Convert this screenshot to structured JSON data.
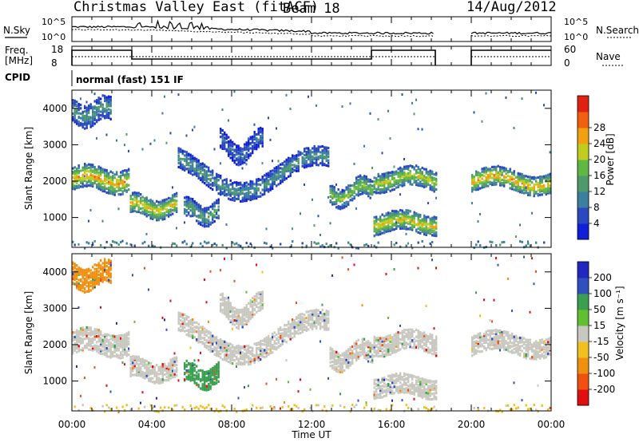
{
  "header": {
    "title": "Christmas Valley East (fitACF)",
    "beam": "Beam 18",
    "date": "14/Aug/2012"
  },
  "noise_panel": {
    "left_label": "N.Sky",
    "right_label": "N.Search",
    "yticks": [
      "10^5",
      "10^0"
    ]
  },
  "freq_panel": {
    "left_label_1": "Freq.",
    "left_label_2": "[MHz]",
    "right_label": "Nave",
    "left_ticks": [
      "18",
      "8"
    ],
    "right_ticks": [
      "60",
      "0"
    ],
    "cpid_label": "CPID",
    "cpid_text": "normal (fast) 151 IF"
  },
  "chart_data": [
    {
      "type": "heatmap",
      "name": "power",
      "ylabel": "Slant Range [km]",
      "yticks": [
        1000,
        2000,
        3000,
        4000
      ],
      "ylim": [
        180,
        4500
      ],
      "xlim_hours": [
        0,
        24
      ],
      "colorbar_label": "Power [dB]",
      "colorbar_ticks": [
        "4",
        "8",
        "12",
        "16",
        "20",
        "24",
        "28"
      ],
      "colorbar_colors": [
        "#1020d8",
        "#2a48c0",
        "#3d7f9e",
        "#4f9a6a",
        "#60b844",
        "#c0cc20",
        "#f0a010",
        "#f06010",
        "#e02010"
      ],
      "gaps_hours": [
        [
          18.2,
          20.0
        ]
      ],
      "bands": [
        {
          "t0": 0.0,
          "t1": 2.9,
          "r": 2050,
          "amp": 120,
          "w": 300,
          "v": 24
        },
        {
          "t0": 2.9,
          "t1": 5.2,
          "r": 1300,
          "amp": 120,
          "w": 280,
          "v": 22
        },
        {
          "t0": 5.2,
          "t1": 12.8,
          "r": 2200,
          "amp": 500,
          "w": 260,
          "v": 12
        },
        {
          "t0": 12.8,
          "t1": 15.0,
          "r": 1700,
          "amp": 200,
          "w": 280,
          "v": 18
        },
        {
          "t0": 15.0,
          "t1": 18.2,
          "r": 2050,
          "amp": 120,
          "w": 260,
          "v": 20
        },
        {
          "t0": 15.0,
          "t1": 18.2,
          "r": 850,
          "amp": 100,
          "w": 260,
          "v": 22
        },
        {
          "t0": 20.0,
          "t1": 24.0,
          "r": 2000,
          "amp": 150,
          "w": 280,
          "v": 24
        },
        {
          "t0": 5.5,
          "t1": 7.3,
          "r": 1150,
          "amp": 150,
          "w": 260,
          "v": 14
        },
        {
          "t0": 7.3,
          "t1": 9.5,
          "r": 2950,
          "amp": 250,
          "w": 250,
          "v": 8
        },
        {
          "t0": 0.0,
          "t1": 2.0,
          "r": 3900,
          "amp": 150,
          "w": 300,
          "v": 12
        }
      ]
    },
    {
      "type": "heatmap",
      "name": "velocity",
      "ylabel": "Slant Range [km]",
      "xlabel": "Time UT",
      "yticks": [
        1000,
        2000,
        3000,
        4000
      ],
      "ylim": [
        180,
        4500
      ],
      "xlim_hours": [
        0,
        24
      ],
      "xticks": [
        "00:00",
        "04:00",
        "08:00",
        "12:00",
        "16:00",
        "20:00",
        "00:00"
      ],
      "colorbar_label": "Velocity [m s⁻¹]",
      "colorbar_ticks": [
        "-200",
        "-100",
        "-50",
        "-15",
        "15",
        "50",
        "100",
        "200"
      ],
      "colorbar_colors": [
        "#e01010",
        "#f05010",
        "#f09010",
        "#f0c020",
        "#c8c8c0",
        "#60c030",
        "#3aa050",
        "#3050c0",
        "#2028c0"
      ],
      "gaps_hours": [
        [
          18.2,
          20.0
        ]
      ],
      "bands": [
        {
          "t0": 0.0,
          "t1": 2.9,
          "r": 2050,
          "amp": 120,
          "w": 300,
          "v": 0
        },
        {
          "t0": 2.9,
          "t1": 5.2,
          "r": 1300,
          "amp": 120,
          "w": 280,
          "v": 0
        },
        {
          "t0": 5.2,
          "t1": 12.8,
          "r": 2200,
          "amp": 500,
          "w": 260,
          "v": 0
        },
        {
          "t0": 12.8,
          "t1": 15.0,
          "r": 1700,
          "amp": 200,
          "w": 280,
          "v": 0
        },
        {
          "t0": 15.0,
          "t1": 18.2,
          "r": 2050,
          "amp": 120,
          "w": 260,
          "v": 0
        },
        {
          "t0": 15.0,
          "t1": 18.2,
          "r": 850,
          "amp": 100,
          "w": 260,
          "v": 0
        },
        {
          "t0": 20.0,
          "t1": 24.0,
          "r": 2000,
          "amp": 150,
          "w": 280,
          "v": 0
        },
        {
          "t0": 5.5,
          "t1": 7.3,
          "r": 1150,
          "amp": 150,
          "w": 260,
          "v": 70
        },
        {
          "t0": 7.3,
          "t1": 9.5,
          "r": 2950,
          "amp": 250,
          "w": 250,
          "v": 0
        },
        {
          "t0": 0.0,
          "t1": 2.0,
          "r": 3900,
          "amp": 150,
          "w": 300,
          "v": -60
        }
      ]
    }
  ]
}
